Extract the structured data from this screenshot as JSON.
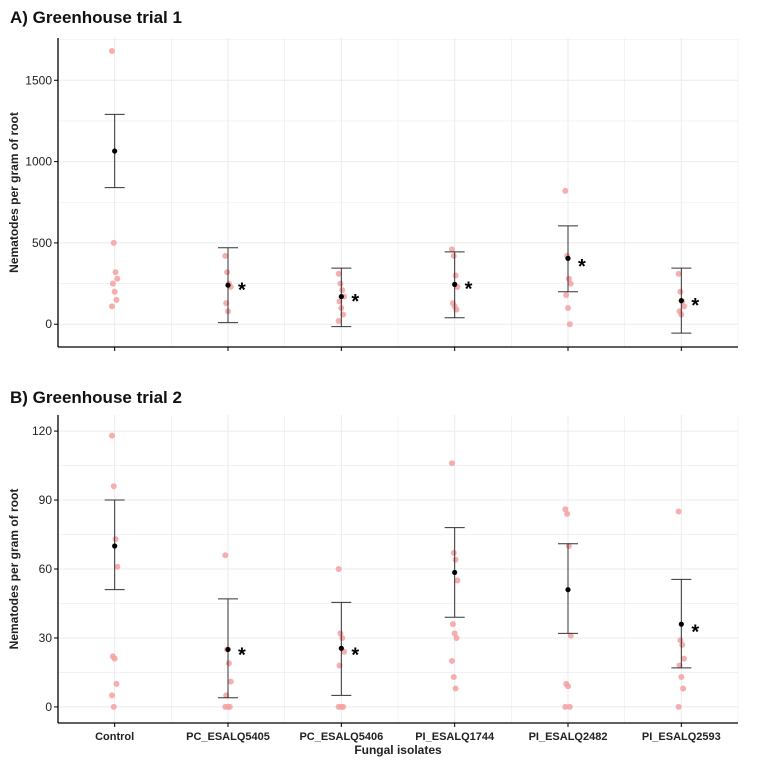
{
  "chart_data": [
    {
      "type": "scatter",
      "title": "A) Greenhouse trial 1",
      "xlabel": "",
      "ylabel": "Nematodes per gram of root",
      "categories": [
        "Control",
        "PC_ESALQ5405",
        "PC_ESALQ5406",
        "PI_ESALQ1744",
        "PI_ESALQ2482",
        "PI_ESALQ2593"
      ],
      "ylim": [
        -140,
        1760
      ],
      "yticks": [
        0,
        500,
        1000,
        1500
      ],
      "show_category_labels": false,
      "series": [
        {
          "name": "replicate points",
          "values": [
            [
              1680,
              500,
              320,
              280,
              250,
              200,
              150,
              110
            ],
            [
              420,
              320,
              250,
              230,
              130,
              80
            ],
            [
              310,
              250,
              210,
              170,
              140,
              100,
              60,
              20
            ],
            [
              460,
              420,
              300,
              230,
              130,
              110,
              90
            ],
            [
              820,
              420,
              280,
              250,
              180,
              100,
              0
            ],
            [
              310,
              200,
              140,
              110,
              80,
              60
            ]
          ]
        },
        {
          "name": "mean",
          "values": [
            1065,
            240,
            170,
            245,
            405,
            145
          ]
        },
        {
          "name": "error bar upper",
          "values": [
            1290,
            470,
            345,
            445,
            605,
            345
          ]
        },
        {
          "name": "error bar lower",
          "values": [
            840,
            10,
            -15,
            40,
            200,
            -55
          ]
        }
      ],
      "annotations": [
        {
          "category": "PC_ESALQ5405",
          "text": "*",
          "y": 245
        },
        {
          "category": "PC_ESALQ5406",
          "text": "*",
          "y": 175
        },
        {
          "category": "PI_ESALQ1744",
          "text": "*",
          "y": 250
        },
        {
          "category": "PI_ESALQ2482",
          "text": "*",
          "y": 390
        },
        {
          "category": "PI_ESALQ2593",
          "text": "*",
          "y": 150
        }
      ]
    },
    {
      "type": "scatter",
      "title": "B) Greenhouse trial 2",
      "xlabel": "Fungal isolates",
      "ylabel": "Nematodes per gram of root",
      "categories": [
        "Control",
        "PC_ESALQ5405",
        "PC_ESALQ5406",
        "PI_ESALQ1744",
        "PI_ESALQ2482",
        "PI_ESALQ2593"
      ],
      "ylim": [
        -7,
        127
      ],
      "yticks": [
        0,
        30,
        60,
        90,
        120
      ],
      "show_category_labels": true,
      "series": [
        {
          "name": "replicate points",
          "values": [
            [
              118,
              96,
              73,
              61,
              22,
              21,
              10,
              5,
              0
            ],
            [
              66,
              25,
              19,
              11,
              5,
              0,
              0,
              0
            ],
            [
              60,
              32,
              30,
              24,
              18,
              0,
              0,
              0
            ],
            [
              106,
              67,
              64,
              55,
              36,
              32,
              30,
              20,
              13,
              8
            ],
            [
              86,
              84,
              70,
              31,
              10,
              9,
              0,
              0
            ],
            [
              85,
              29,
              27,
              21,
              18,
              13,
              8,
              0
            ]
          ]
        },
        {
          "name": "mean",
          "values": [
            70,
            25,
            25.5,
            58.5,
            51,
            36
          ]
        },
        {
          "name": "error bar upper",
          "values": [
            90,
            47,
            45.5,
            78,
            71,
            55.5
          ]
        },
        {
          "name": "error bar lower",
          "values": [
            51,
            4,
            5,
            39,
            32,
            17
          ]
        }
      ],
      "annotations": [
        {
          "category": "PC_ESALQ5405",
          "text": "*",
          "y": 25
        },
        {
          "category": "PC_ESALQ5406",
          "text": "*",
          "y": 25
        },
        {
          "category": "PI_ESALQ2593",
          "text": "*",
          "y": 35
        }
      ]
    }
  ],
  "colors": {
    "points": "#f4a0a0",
    "mean": "#000000",
    "errorbar": "#333333",
    "grid": "#ebebeb",
    "axis": "#000000"
  }
}
